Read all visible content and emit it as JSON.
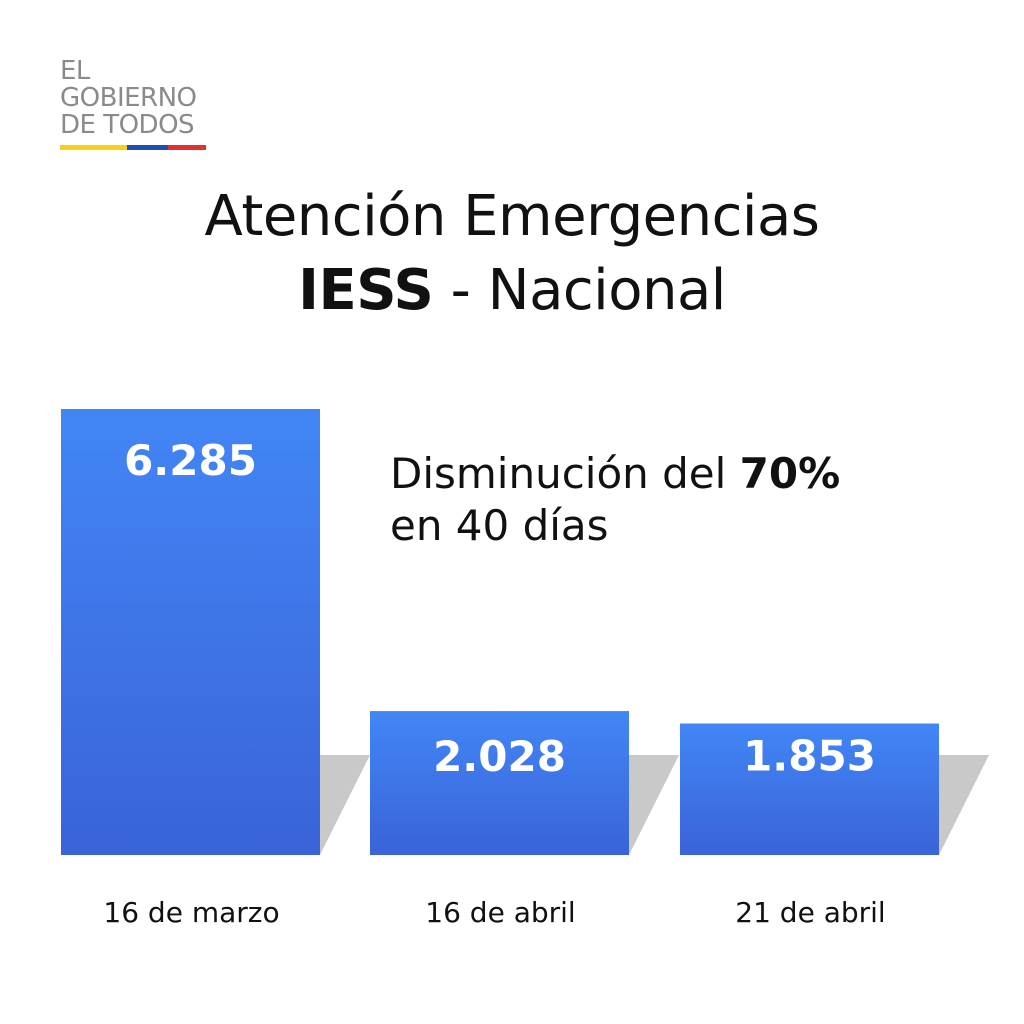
{
  "logo": {
    "lines": [
      "EL",
      "GOBIERNO",
      "DE TODOS"
    ],
    "stripe_colors": [
      "#f7d117",
      "#1d4fb3",
      "#e0302f"
    ]
  },
  "title": {
    "line1": "Atención Emergencias",
    "line2_bold": "IESS",
    "line2_rest": " - Nacional"
  },
  "note": {
    "prefix": "Disminución del ",
    "bold": "70%",
    "line2": "en 40 días"
  },
  "colors": {
    "bar_top": "#4286f6",
    "bar_bottom": "#3a63d8",
    "shadow": "#c9c9c9"
  },
  "chart_data": {
    "type": "bar",
    "categories": [
      "16 de marzo",
      "16 de abril",
      "21 de abril"
    ],
    "values": [
      6285,
      2028,
      1853
    ],
    "value_labels": [
      "6.285",
      "2.028",
      "1.853"
    ],
    "title": "Atención Emergencias IESS - Nacional",
    "xlabel": "",
    "ylabel": "",
    "grid": false,
    "legend": "none"
  }
}
